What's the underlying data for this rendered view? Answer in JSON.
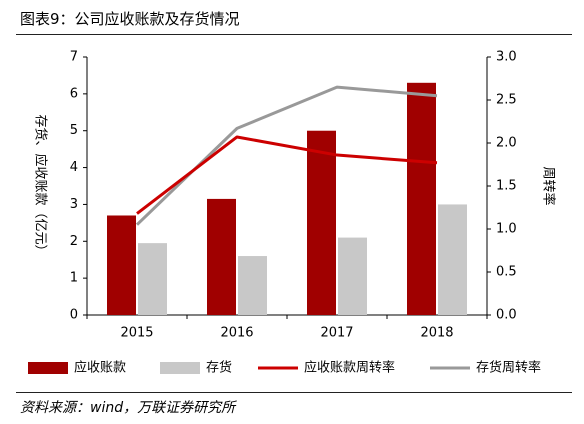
{
  "header": {
    "title": "图表9：公司应收账款及存货情况"
  },
  "footer": {
    "source": "资料来源：wind，万联证券研究所"
  },
  "colors": {
    "receivables_bar": "#a00000",
    "inventory_bar": "#c8c8c8",
    "receivables_turnover_line": "#cc0000",
    "inventory_turnover_line": "#999999"
  },
  "chart_data": {
    "type": "bar",
    "categories": [
      "2015",
      "2016",
      "2017",
      "2018"
    ],
    "series": [
      {
        "name": "应收账款",
        "kind": "bar",
        "axis": "left",
        "values": [
          2.7,
          3.15,
          5.0,
          6.3
        ]
      },
      {
        "name": "存货",
        "kind": "bar",
        "axis": "left",
        "values": [
          1.95,
          1.6,
          2.1,
          3.0
        ]
      },
      {
        "name": "应收账款周转率",
        "kind": "line",
        "axis": "right",
        "values": [
          1.18,
          2.07,
          1.86,
          1.77
        ]
      },
      {
        "name": "存货周转率",
        "kind": "line",
        "axis": "right",
        "values": [
          1.05,
          2.17,
          2.65,
          2.55
        ]
      }
    ],
    "ylabel": "存货、应收账款（亿元）",
    "y2label": "周转率",
    "ylim": [
      0,
      7
    ],
    "y2lim": [
      0,
      3
    ],
    "yticks": [
      "0",
      "1",
      "2",
      "3",
      "4",
      "5",
      "6",
      "7"
    ],
    "y2ticks": [
      "0.0",
      "0.5",
      "1.0",
      "1.5",
      "2.0",
      "2.5",
      "3.0"
    ],
    "legend_position": "bottom",
    "grid": false
  }
}
